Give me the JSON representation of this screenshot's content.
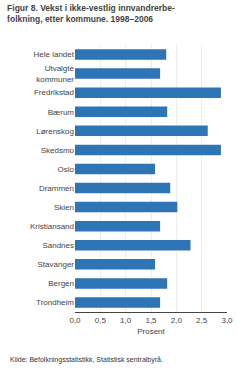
{
  "chart_data": {
    "type": "bar",
    "orientation": "horizontal",
    "title": "Figur 8. Vekst i ikke-vestlig innvandrerbe-\nfolkning, etter kommune. 1998–2006",
    "categories": [
      "Trondheim",
      "Bergen",
      "Stavanger",
      "Sandnes",
      "Kristiansand",
      "Skien",
      "Drammen",
      "Oslo",
      "Skedsmo",
      "Lørenskog",
      "Bærum",
      "Fredrikstad",
      "Utvalgte\nkommuner",
      "Hele landet"
    ],
    "values": [
      1.68,
      1.82,
      1.58,
      2.28,
      1.68,
      2.02,
      1.88,
      1.58,
      2.88,
      2.62,
      1.82,
      2.88,
      1.68,
      1.8
    ],
    "color": "#2E75B6",
    "xlabel": "Prosent",
    "xlim": [
      0,
      3.0
    ],
    "xticks": [
      {
        "value": 0.0,
        "label": "0,0"
      },
      {
        "value": 0.5,
        "label": "0,5"
      },
      {
        "value": 1.0,
        "label": "1,0"
      },
      {
        "value": 1.5,
        "label": "1,5"
      },
      {
        "value": 2.0,
        "label": "2,0"
      },
      {
        "value": 2.5,
        "label": "2,5"
      },
      {
        "value": 3.0,
        "label": "3,0"
      }
    ],
    "grid": true,
    "annotations": [
      "Kilde: Befolkningsstatistikk, Statistisk sentralbyrå."
    ]
  }
}
